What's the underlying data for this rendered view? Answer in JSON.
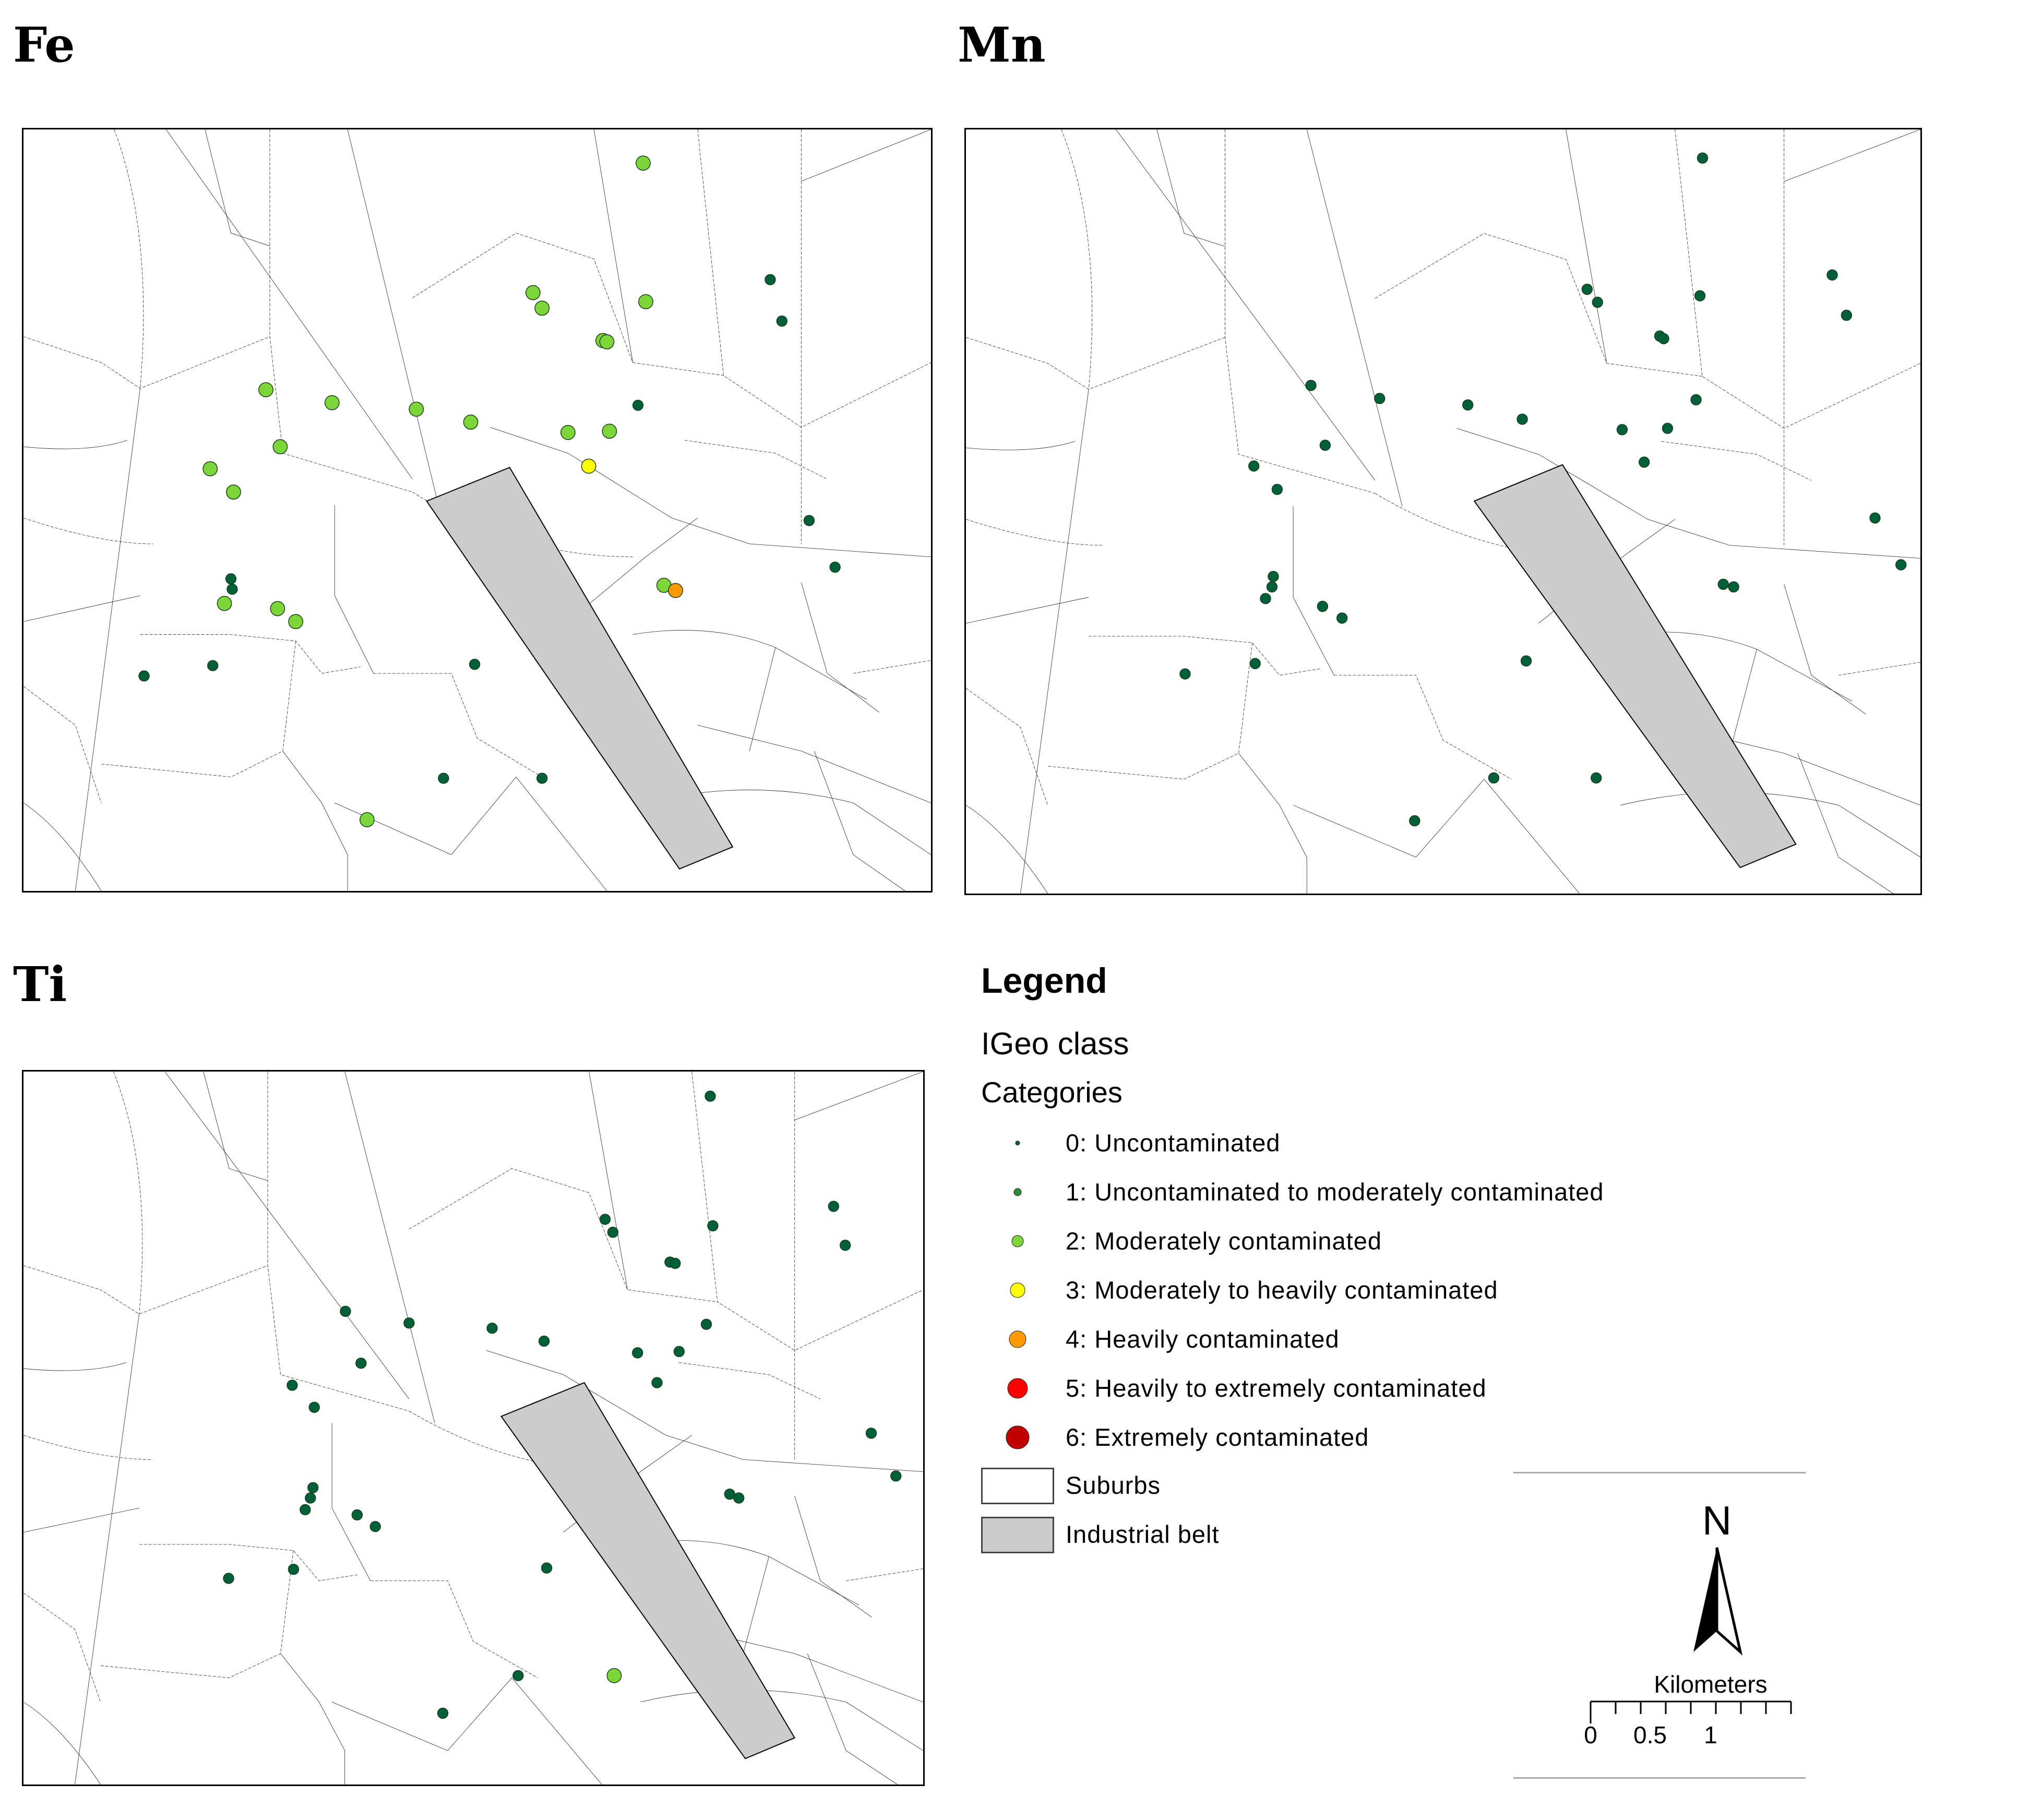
{
  "panels": [
    {
      "id": "fe",
      "title": "Fe"
    },
    {
      "id": "mn",
      "title": "Mn"
    },
    {
      "id": "ti",
      "title": "Ti"
    }
  ],
  "legend": {
    "title": "Legend",
    "field": "IGeo class",
    "categories_label": "Categories",
    "classes": [
      {
        "label": "0: Uncontaminated",
        "color": "#00603a"
      },
      {
        "label": "1: Uncontaminated to moderately contaminated",
        "color": "#2e8b3a"
      },
      {
        "label": "2: Moderately contaminated",
        "color": "#7cd63a"
      },
      {
        "label": "3: Moderately to heavily contaminated",
        "color": "#ffff00"
      },
      {
        "label": "4: Heavily contaminated",
        "color": "#ff9900"
      },
      {
        "label": "5: Heavily to extremely contaminated",
        "color": "#ff0000"
      },
      {
        "label": "6: Extremely contaminated",
        "color": "#c00000"
      }
    ],
    "areas": [
      {
        "label": "Suburbs",
        "color": "#ffffff"
      },
      {
        "label": "Industrial belt",
        "color": "#cccccc"
      }
    ]
  },
  "north_arrow": {
    "label": "N"
  },
  "scale_bar": {
    "unit": "Kilometers",
    "ticks": [
      "0",
      "0.5",
      "1"
    ]
  },
  "map_data": {
    "fe": [
      [
        2,
        478,
        26
      ],
      [
        0,
        576,
        116
      ],
      [
        2,
        393,
        126
      ],
      [
        2,
        400,
        138
      ],
      [
        2,
        480,
        133
      ],
      [
        0,
        585,
        148
      ],
      [
        2,
        447,
        163
      ],
      [
        2,
        450,
        164
      ],
      [
        0,
        474,
        213
      ],
      [
        2,
        187,
        201
      ],
      [
        2,
        238,
        211
      ],
      [
        2,
        303,
        216
      ],
      [
        2,
        345,
        226
      ],
      [
        2,
        420,
        234
      ],
      [
        2,
        452,
        233
      ],
      [
        3,
        436,
        260
      ],
      [
        2,
        198,
        245
      ],
      [
        2,
        144,
        262
      ],
      [
        2,
        162,
        280
      ],
      [
        0,
        606,
        302
      ],
      [
        0,
        626,
        338
      ],
      [
        0,
        160,
        347
      ],
      [
        0,
        161,
        355
      ],
      [
        2,
        155,
        366
      ],
      [
        2,
        196,
        370
      ],
      [
        2,
        210,
        380
      ],
      [
        2,
        494,
        352
      ],
      [
        4,
        503,
        356
      ],
      [
        0,
        93,
        422
      ],
      [
        0,
        146,
        414
      ],
      [
        0,
        348,
        413
      ],
      [
        0,
        324,
        501
      ],
      [
        0,
        400,
        501
      ],
      [
        2,
        265,
        533
      ]
    ],
    "mn": [
      [
        0,
        568,
        22
      ],
      [
        0,
        479,
        123
      ],
      [
        0,
        487,
        133
      ],
      [
        0,
        668,
        112
      ],
      [
        0,
        566,
        128
      ],
      [
        0,
        679,
        143
      ],
      [
        0,
        535,
        159
      ],
      [
        0,
        538,
        161
      ],
      [
        0,
        266,
        197
      ],
      [
        0,
        319,
        207
      ],
      [
        0,
        387,
        212
      ],
      [
        0,
        429,
        223
      ],
      [
        0,
        563,
        208
      ],
      [
        0,
        506,
        231
      ],
      [
        0,
        541,
        230
      ],
      [
        0,
        277,
        243
      ],
      [
        0,
        523,
        256
      ],
      [
        0,
        222,
        259
      ],
      [
        0,
        240,
        277
      ],
      [
        0,
        701,
        299
      ],
      [
        0,
        721,
        335
      ],
      [
        0,
        237,
        344
      ],
      [
        0,
        236,
        352
      ],
      [
        0,
        231,
        361
      ],
      [
        0,
        275,
        367
      ],
      [
        0,
        290,
        376
      ],
      [
        0,
        584,
        350
      ],
      [
        0,
        592,
        352
      ],
      [
        0,
        169,
        419
      ],
      [
        0,
        223,
        411
      ],
      [
        0,
        432,
        409
      ],
      [
        0,
        407,
        499
      ],
      [
        0,
        486,
        499
      ],
      [
        0,
        346,
        532
      ]
    ],
    "ti": [
      [
        0,
        529,
        19
      ],
      [
        0,
        448,
        114
      ],
      [
        0,
        454,
        124
      ],
      [
        0,
        531,
        119
      ],
      [
        0,
        624,
        104
      ],
      [
        0,
        633,
        134
      ],
      [
        0,
        498,
        147
      ],
      [
        0,
        502,
        148
      ],
      [
        0,
        248,
        185
      ],
      [
        0,
        297,
        194
      ],
      [
        0,
        361,
        198
      ],
      [
        0,
        401,
        208
      ],
      [
        0,
        526,
        195
      ],
      [
        0,
        473,
        217
      ],
      [
        0,
        505,
        216
      ],
      [
        0,
        260,
        225
      ],
      [
        0,
        488,
        240
      ],
      [
        0,
        207,
        242
      ],
      [
        0,
        224,
        259
      ],
      [
        0,
        653,
        279
      ],
      [
        0,
        672,
        312
      ],
      [
        0,
        223,
        321
      ],
      [
        0,
        221,
        329
      ],
      [
        0,
        217,
        338
      ],
      [
        0,
        257,
        342
      ],
      [
        0,
        271,
        351
      ],
      [
        0,
        544,
        326
      ],
      [
        0,
        551,
        329
      ],
      [
        0,
        158,
        391
      ],
      [
        0,
        208,
        384
      ],
      [
        0,
        403,
        383
      ],
      [
        0,
        381,
        466
      ],
      [
        2,
        455,
        466
      ],
      [
        0,
        323,
        495
      ]
    ]
  }
}
